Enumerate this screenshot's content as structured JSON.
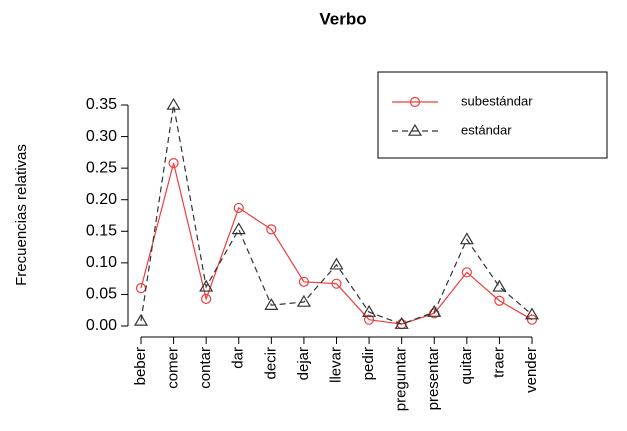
{
  "chart_data": {
    "type": "line",
    "title": "Verbo",
    "ylabel": "Frecuencias relativas",
    "categories": [
      "beber",
      "comer",
      "contar",
      "dar",
      "decir",
      "dejar",
      "llevar",
      "pedir",
      "preguntar",
      "presentar",
      "quitar",
      "traer",
      "vender"
    ],
    "series": [
      {
        "name": "subestándar",
        "color": "#f03c3c",
        "linestyle": "solid",
        "marker": "circle",
        "values": [
          0.06,
          0.258,
          0.043,
          0.187,
          0.153,
          0.07,
          0.067,
          0.01,
          0.003,
          0.02,
          0.085,
          0.04,
          0.01
        ]
      },
      {
        "name": "estándar",
        "color": "#333333",
        "linestyle": "dashed",
        "marker": "triangle",
        "values": [
          0.008,
          0.35,
          0.062,
          0.153,
          0.033,
          0.038,
          0.097,
          0.022,
          0.003,
          0.022,
          0.137,
          0.062,
          0.018
        ]
      }
    ],
    "ylim": [
      0,
      0.35
    ],
    "yticks": [
      {
        "value": 0,
        "label": "0.00"
      },
      0.05,
      {
        "value": 0.1,
        "label": "0.10"
      },
      0.15,
      {
        "value": 0.2,
        "label": "0.20"
      },
      0.25,
      {
        "value": 0.3,
        "label": "0.30"
      },
      0.35
    ],
    "legend": "topright",
    "grid": false
  }
}
